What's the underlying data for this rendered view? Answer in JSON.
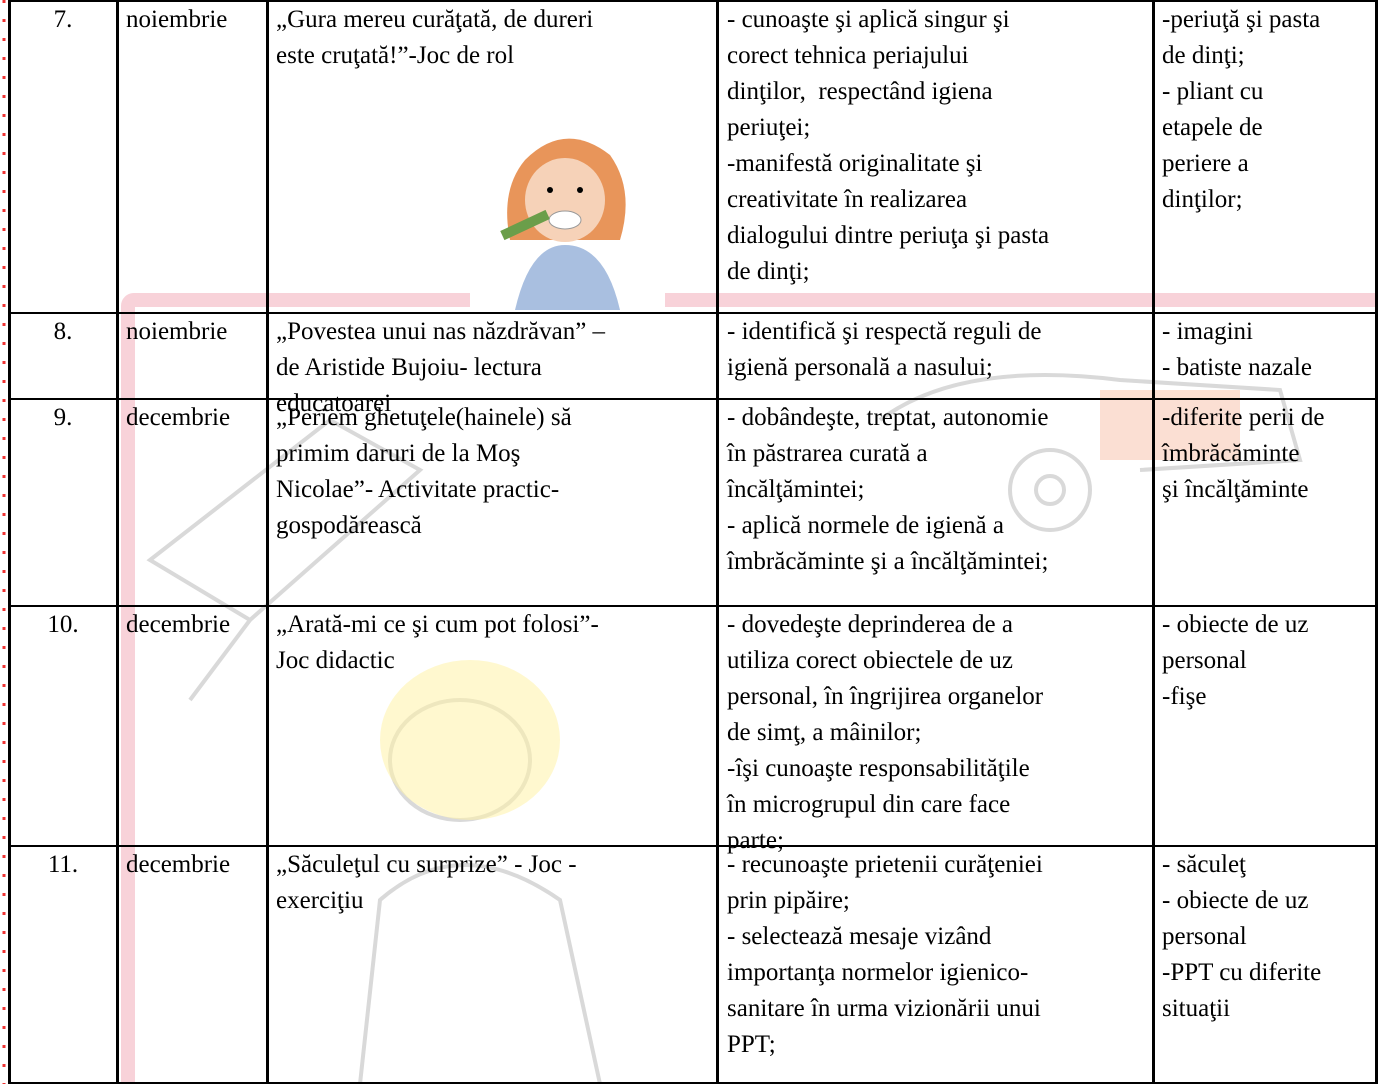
{
  "table": {
    "rows": [
      [
        [
          "7."
        ],
        [
          "noiembrie"
        ],
        [
          "„Gura mereu curăţată, de dureri",
          "este cruţată!”-Joc de rol"
        ],
        [
          "- cunoaşte şi aplică singur şi",
          "corect tehnica periajului",
          "dinţilor,  respectând igiena",
          "periuţei;",
          "-manifestă originalitate şi",
          "creativitate în realizarea",
          "dialogului dintre periuţa şi pasta",
          "de dinţi;"
        ],
        [
          "-periuţă şi pasta",
          "de dinţi;",
          "- pliant cu",
          "etapele de",
          "periere a",
          "dinţilor;"
        ]
      ],
      [
        [
          "8."
        ],
        [
          "noiembrie"
        ],
        [
          "„Povestea unui nas năzdrăvan” –",
          "de Aristide Bujoiu- lectura",
          "educatoarei"
        ],
        [
          "- identifică şi respectă reguli de",
          "igienă personală a nasului;"
        ],
        [
          "- imagini",
          "- batiste nazale"
        ]
      ],
      [
        [
          "9."
        ],
        [
          "decembrie"
        ],
        [
          "„Periem ghetuţele(hainele) să",
          "primim daruri de la Moş",
          "Nicolae”- Activitate practic-",
          "gospodărească"
        ],
        [
          "- dobândeşte, treptat, autonomie",
          "în păstrarea curată a",
          "încălţămintei;",
          "- aplică normele de igienă a",
          "îmbrăcăminte şi a încălţămintei;"
        ],
        [
          "-diferite perii de",
          "îmbrăcăminte",
          "şi încălţăminte"
        ]
      ],
      [
        [
          "10."
        ],
        [
          "decembrie"
        ],
        [
          "„Arată-mi ce şi cum pot folosi”-",
          "Joc didactic"
        ],
        [
          "- dovedeşte deprinderea de a",
          "utiliza corect obiectele de uz",
          "personal, în îngrijirea organelor",
          "de simţ, a mâinilor;",
          "-îşi cunoaşte responsabilităţile",
          "în microgrupul din care face",
          "parte;"
        ],
        [
          "- obiecte de uz",
          "personal",
          "-fişe"
        ]
      ],
      [
        [
          "11."
        ],
        [
          "decembrie"
        ],
        [
          "„Săculeţul cu surprize” - Joc -",
          "exerciţiu"
        ],
        [
          "- recunoaşte prietenii curăţeniei",
          "prin pipăire;",
          "- selectează mesaje vizând",
          "importanţa normelor igienico-",
          "sanitare în urma vizionării unui",
          "PPT;"
        ],
        [
          "- săculeţ",
          "- obiecte de uz",
          "personal",
          "-PPT cu diferite",
          "situaţii"
        ]
      ]
    ]
  }
}
